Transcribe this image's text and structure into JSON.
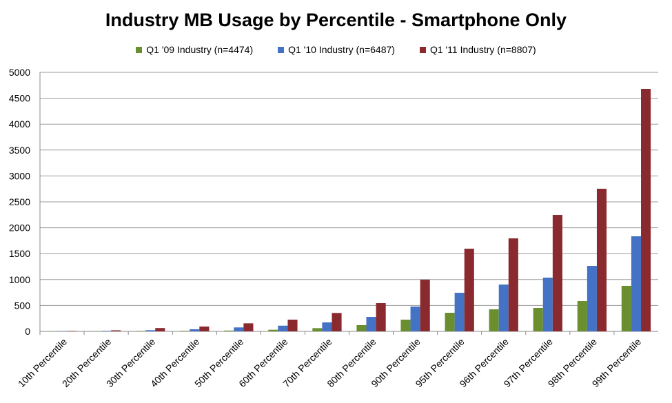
{
  "chart_data": {
    "type": "bar",
    "title": "Industry MB Usage by Percentile - Smartphone Only",
    "xlabel": "",
    "ylabel": "",
    "ylim": [
      0,
      5000
    ],
    "yticks": [
      0,
      500,
      1000,
      1500,
      2000,
      2500,
      3000,
      3500,
      4000,
      4500,
      5000
    ],
    "grid": true,
    "legend": "top",
    "categories": [
      "10th Percentile",
      "20th Percentile",
      "30th Percentile",
      "40th Percentile",
      "50th Percentile",
      "60th Percentile",
      "70th Percentile",
      "80th Percentile",
      "90th Percentile",
      "95th Percentile",
      "96th Percentile",
      "97th Percentile",
      "98th Percentile",
      "99th Percentile"
    ],
    "series": [
      {
        "name": "Q1 '09 Industry (n=4474)",
        "color": "#6b8e2f",
        "values": [
          2,
          6,
          8,
          10,
          15,
          31,
          62,
          120,
          226,
          359,
          425,
          452,
          585,
          878
        ]
      },
      {
        "name": "Q1 '10 Industry (n=6487)",
        "color": "#4472c4",
        "values": [
          7,
          10,
          22,
          40,
          76,
          110,
          173,
          279,
          479,
          745,
          904,
          1037,
          1263,
          1835
        ]
      },
      {
        "name": "Q1 '11 Industry (n=8807)",
        "color": "#8b2a2e",
        "values": [
          8,
          20,
          64,
          93,
          155,
          226,
          355,
          545,
          997,
          1596,
          1795,
          2247,
          2753,
          4681
        ]
      }
    ]
  }
}
